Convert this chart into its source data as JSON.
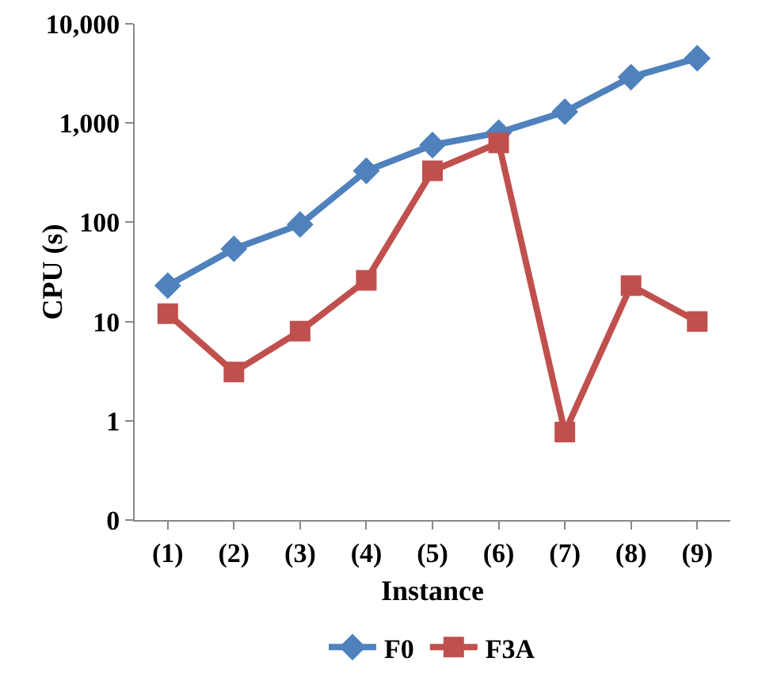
{
  "chart_data": {
    "type": "line",
    "xlabel": "Instance",
    "ylabel": "CPU (s)",
    "categories": [
      "(1)",
      "(2)",
      "(3)",
      "(4)",
      "(5)",
      "(6)",
      "(7)",
      "(8)",
      "(9)"
    ],
    "series": [
      {
        "name": "F0",
        "color": "#4f81bd",
        "marker": "diamond",
        "values": [
          23,
          54,
          95,
          330,
          600,
          800,
          1300,
          2900,
          4500
        ]
      },
      {
        "name": "F3A",
        "color": "#c0504d",
        "marker": "square",
        "values": [
          12,
          3.1,
          8,
          26,
          330,
          630,
          0.77,
          23,
          10
        ]
      }
    ],
    "log": true,
    "ylim": [
      0.1,
      10000
    ],
    "yticks": [
      {
        "value": 0.1,
        "label": "0"
      },
      {
        "value": 1,
        "label": "1"
      },
      {
        "value": 10,
        "label": "10"
      },
      {
        "value": 100,
        "label": "100"
      },
      {
        "value": 1000,
        "label": "1,000"
      },
      {
        "value": 10000,
        "label": "10,000"
      }
    ],
    "grid": false,
    "legend": "bottom",
    "line_style": "solid"
  }
}
